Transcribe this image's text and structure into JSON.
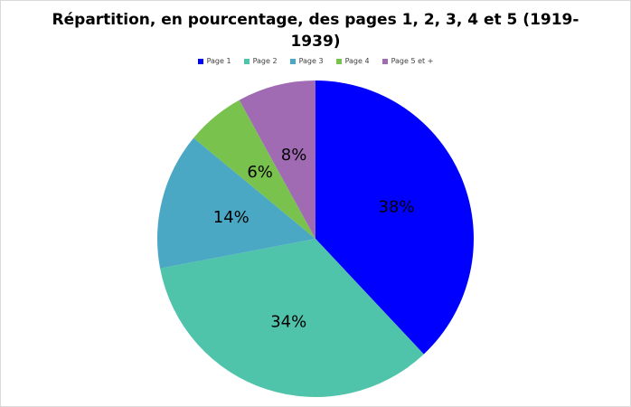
{
  "chart_data": {
    "type": "pie",
    "title": "Répartition, en pourcentage, des pages 1, 2, 3, 4 et 5 (1919-1939)",
    "legend_position": "top",
    "slices": [
      {
        "name": "Page 1",
        "value": 38,
        "label": "38%",
        "color": "#0000ff"
      },
      {
        "name": "Page 2",
        "value": 34,
        "label": "34%",
        "color": "#50c3ab"
      },
      {
        "name": "Page 3",
        "value": 14,
        "label": "14%",
        "color": "#4ba8c4"
      },
      {
        "name": "Page 4",
        "value": 6,
        "label": "6%",
        "color": "#7ac24e"
      },
      {
        "name": "Page 5 et +",
        "value": 8,
        "label": "8%",
        "color": "#a06bb3"
      }
    ]
  }
}
